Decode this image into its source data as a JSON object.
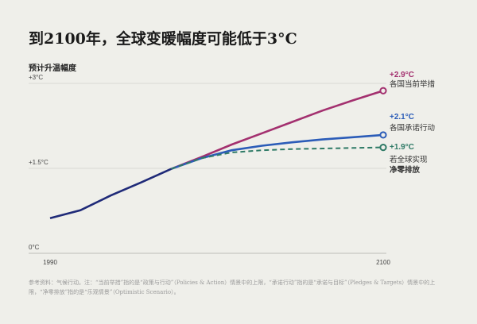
{
  "chart_data": {
    "type": "line",
    "title": "到2100年，全球变暖幅度可能低于3°C",
    "ylabel": "预计升温幅度",
    "xlim": [
      1990,
      2100
    ],
    "ylim": [
      0,
      3
    ],
    "x_ticks": [
      "1990",
      "2100"
    ],
    "y_ticks": [
      {
        "value": 0,
        "label": "0°C"
      },
      {
        "value": 1.5,
        "label": "+1.5°C"
      },
      {
        "value": 3,
        "label": "+3°C"
      }
    ],
    "grid": true,
    "historical": {
      "color": "#1f2a78",
      "points": [
        [
          1990,
          0.62
        ],
        [
          2000,
          0.76
        ],
        [
          2010,
          1.02
        ],
        [
          2020,
          1.25
        ],
        [
          2030,
          1.49
        ]
      ]
    },
    "series": [
      {
        "name": "各国当前举措",
        "end_label": "+2.9°C",
        "color": "#a3306f",
        "dashed": false,
        "points": [
          [
            2030,
            1.49
          ],
          [
            2040,
            1.7
          ],
          [
            2050,
            1.92
          ],
          [
            2060,
            2.12
          ],
          [
            2070,
            2.32
          ],
          [
            2080,
            2.52
          ],
          [
            2090,
            2.7
          ],
          [
            2100,
            2.87
          ]
        ]
      },
      {
        "name": "各国承诺行动",
        "end_label": "+2.1°C",
        "color": "#2b5cb8",
        "dashed": false,
        "points": [
          [
            2030,
            1.49
          ],
          [
            2040,
            1.68
          ],
          [
            2050,
            1.82
          ],
          [
            2060,
            1.9
          ],
          [
            2070,
            1.96
          ],
          [
            2080,
            2.01
          ],
          [
            2090,
            2.05
          ],
          [
            2100,
            2.09
          ]
        ]
      },
      {
        "name": "若全球实现净零排放",
        "name_lines": [
          "若全球实现",
          "净零排放"
        ],
        "end_label": "+1.9°C",
        "color": "#2e7a66",
        "dashed": true,
        "points": [
          [
            2030,
            1.49
          ],
          [
            2040,
            1.68
          ],
          [
            2050,
            1.78
          ],
          [
            2060,
            1.82
          ],
          [
            2070,
            1.84
          ],
          [
            2080,
            1.85
          ],
          [
            2090,
            1.86
          ],
          [
            2100,
            1.87
          ]
        ]
      }
    ]
  },
  "footnote": "参考资料：气候行动。注：“当前举措”指的是“政策与行动”（Policies & Action）情景中的上限，“承诺行动”指的是“承诺与目标”（Pledges & Targets）情景中的上限，“净零排放”指的是“乐观情景”（Optimistic Scenario）。"
}
